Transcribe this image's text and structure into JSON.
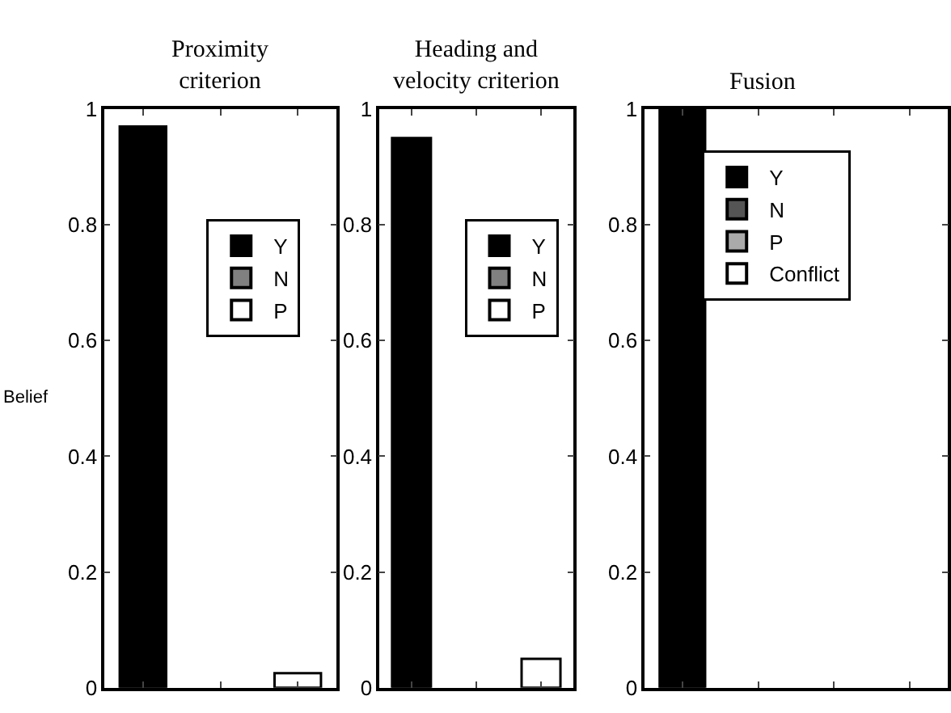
{
  "chart_data": [
    {
      "type": "bar",
      "title": "Proximity\ncriterion",
      "ylabel": "Belief",
      "categories": [
        null,
        null,
        null
      ],
      "ylim": [
        0,
        1
      ],
      "yticks": [
        0,
        0.2,
        0.4,
        0.6,
        0.8,
        1
      ],
      "tick_labels": "y",
      "legend": "right",
      "series": [
        {
          "name": "Y",
          "color": "#000000",
          "values": [
            0.97,
            null,
            null
          ]
        },
        {
          "name": "N",
          "color": "#808080",
          "values": [
            null,
            0,
            null
          ]
        },
        {
          "name": "P",
          "color": "#ffffff",
          "values": [
            null,
            null,
            0.025
          ]
        }
      ]
    },
    {
      "type": "bar",
      "title": "Heading and\nvelocity criterion",
      "categories": [
        null,
        null,
        null
      ],
      "ylim": [
        0,
        1
      ],
      "yticks": [
        0,
        0.2,
        0.4,
        0.6,
        0.8,
        1
      ],
      "tick_labels": "y",
      "legend": "right",
      "series": [
        {
          "name": "Y",
          "color": "#000000",
          "values": [
            0.95,
            null,
            null
          ]
        },
        {
          "name": "N",
          "color": "#808080",
          "values": [
            null,
            0,
            null
          ]
        },
        {
          "name": "P",
          "color": "#ffffff",
          "values": [
            null,
            null,
            0.05
          ]
        }
      ]
    },
    {
      "type": "bar",
      "title": "Fusion",
      "categories": [
        null,
        null,
        null,
        null
      ],
      "ylim": [
        0,
        1
      ],
      "yticks": [
        0,
        0.2,
        0.4,
        0.6,
        0.8,
        1
      ],
      "tick_labels": "y",
      "legend": "top",
      "series": [
        {
          "name": "Y",
          "color": "#000000",
          "values": [
            1,
            null,
            null,
            null
          ]
        },
        {
          "name": "N",
          "color": "#555555",
          "values": [
            null,
            0,
            null,
            null
          ]
        },
        {
          "name": "P",
          "color": "#aaaaaa",
          "values": [
            null,
            null,
            0,
            null
          ]
        },
        {
          "name": "Conflict",
          "color": "#ffffff",
          "values": [
            null,
            null,
            null,
            0
          ]
        }
      ]
    }
  ]
}
